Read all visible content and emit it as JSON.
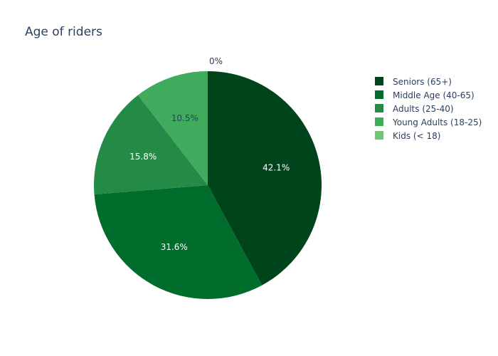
{
  "chart_data": {
    "type": "pie",
    "title": "Age of riders",
    "labels": [
      "Seniors (65+)",
      "Middle Age (40-65)",
      "Adults (25-40)",
      "Young Adults (18-25)",
      "Kids (< 18)"
    ],
    "percent_labels": [
      "42.1%",
      "31.6%",
      "15.8%",
      "10.5%",
      "0%"
    ],
    "values": [
      42.1,
      31.6,
      15.8,
      10.5,
      0
    ],
    "colors": [
      "#00441b",
      "#006d2c",
      "#238b45",
      "#41ab5d",
      "#74c476"
    ],
    "label_text_colors": [
      "#ffffff",
      "#ffffff",
      "#ffffff",
      "#2a3f5f",
      "#2a3f5f"
    ],
    "legend_position": "top-right",
    "direction": "clockwise",
    "start": "top"
  }
}
